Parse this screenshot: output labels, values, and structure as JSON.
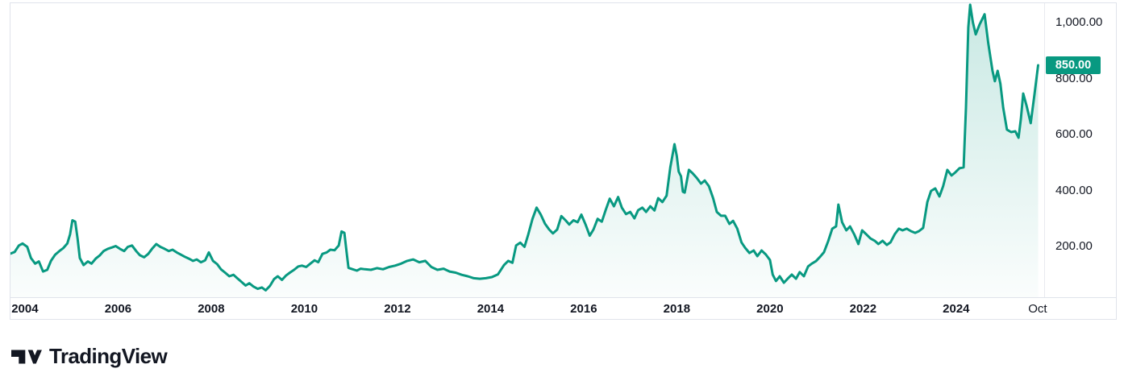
{
  "colors": {
    "accent": "#089981",
    "text": "#131722",
    "border": "#e0e3eb",
    "badge_text": "#ffffff",
    "background": "#ffffff"
  },
  "price_scale": {
    "labels": [
      {
        "label": "1,000.00",
        "value": 1000
      },
      {
        "label": "800.00",
        "value": 800
      },
      {
        "label": "600.00",
        "value": 600
      },
      {
        "label": "400.00",
        "value": 400
      },
      {
        "label": "200.00",
        "value": 200
      }
    ],
    "current": {
      "label": "850.00",
      "value": 850
    }
  },
  "time_scale": {
    "ticks": [
      {
        "label": "2004",
        "year": 2004,
        "bold": true
      },
      {
        "label": "2006",
        "year": 2006,
        "bold": true
      },
      {
        "label": "2008",
        "year": 2008,
        "bold": true
      },
      {
        "label": "2010",
        "year": 2010,
        "bold": true
      },
      {
        "label": "2012",
        "year": 2012,
        "bold": true
      },
      {
        "label": "2014",
        "year": 2014,
        "bold": true
      },
      {
        "label": "2016",
        "year": 2016,
        "bold": true
      },
      {
        "label": "2018",
        "year": 2018,
        "bold": true
      },
      {
        "label": "2020",
        "year": 2020,
        "bold": true
      },
      {
        "label": "2022",
        "year": 2022,
        "bold": true
      },
      {
        "label": "2024",
        "year": 2024,
        "bold": true
      },
      {
        "label": "Oct",
        "year": 2025.75,
        "bold": false
      }
    ]
  },
  "branding": {
    "name": "TradingView"
  },
  "chart_data": {
    "type": "area",
    "title": "",
    "xlabel": "",
    "ylabel": "",
    "legend": false,
    "grid": false,
    "x_axis": {
      "unit": "year",
      "domain": [
        2003.69,
        2025.89
      ],
      "tick_labels": [
        "2004",
        "2006",
        "2008",
        "2010",
        "2012",
        "2014",
        "2016",
        "2018",
        "2020",
        "2022",
        "2024",
        "Oct"
      ]
    },
    "y_axis": {
      "domain": [
        0,
        1070.5
      ],
      "tick_values": [
        200,
        400,
        600,
        800,
        1000
      ],
      "side": "right"
    },
    "last_price": 850,
    "series": [
      {
        "name": "close",
        "color": "#089981",
        "points": [
          [
            2003.69,
            176
          ],
          [
            2003.78,
            182
          ],
          [
            2003.87,
            205
          ],
          [
            2003.95,
            212
          ],
          [
            2004.05,
            200
          ],
          [
            2004.13,
            160
          ],
          [
            2004.22,
            140
          ],
          [
            2004.3,
            148
          ],
          [
            2004.39,
            112
          ],
          [
            2004.48,
            118
          ],
          [
            2004.56,
            150
          ],
          [
            2004.65,
            172
          ],
          [
            2004.74,
            185
          ],
          [
            2004.82,
            195
          ],
          [
            2004.91,
            212
          ],
          [
            2004.97,
            245
          ],
          [
            2005.02,
            295
          ],
          [
            2005.08,
            290
          ],
          [
            2005.13,
            230
          ],
          [
            2005.18,
            160
          ],
          [
            2005.26,
            135
          ],
          [
            2005.35,
            148
          ],
          [
            2005.43,
            140
          ],
          [
            2005.52,
            158
          ],
          [
            2005.61,
            170
          ],
          [
            2005.69,
            185
          ],
          [
            2005.78,
            193
          ],
          [
            2005.87,
            198
          ],
          [
            2005.95,
            203
          ],
          [
            2006.04,
            193
          ],
          [
            2006.13,
            185
          ],
          [
            2006.21,
            200
          ],
          [
            2006.3,
            205
          ],
          [
            2006.39,
            185
          ],
          [
            2006.47,
            170
          ],
          [
            2006.56,
            163
          ],
          [
            2006.65,
            175
          ],
          [
            2006.74,
            195
          ],
          [
            2006.82,
            210
          ],
          [
            2006.91,
            200
          ],
          [
            2007.0,
            193
          ],
          [
            2007.09,
            185
          ],
          [
            2007.17,
            190
          ],
          [
            2007.26,
            180
          ],
          [
            2007.35,
            172
          ],
          [
            2007.43,
            165
          ],
          [
            2007.52,
            158
          ],
          [
            2007.61,
            150
          ],
          [
            2007.69,
            155
          ],
          [
            2007.78,
            145
          ],
          [
            2007.87,
            152
          ],
          [
            2007.95,
            180
          ],
          [
            2008.04,
            150
          ],
          [
            2008.13,
            138
          ],
          [
            2008.21,
            120
          ],
          [
            2008.3,
            108
          ],
          [
            2008.39,
            95
          ],
          [
            2008.48,
            100
          ],
          [
            2008.56,
            88
          ],
          [
            2008.65,
            75
          ],
          [
            2008.74,
            62
          ],
          [
            2008.82,
            70
          ],
          [
            2008.91,
            58
          ],
          [
            2009.0,
            50
          ],
          [
            2009.09,
            55
          ],
          [
            2009.17,
            45
          ],
          [
            2009.26,
            60
          ],
          [
            2009.35,
            85
          ],
          [
            2009.43,
            95
          ],
          [
            2009.52,
            82
          ],
          [
            2009.61,
            98
          ],
          [
            2009.69,
            108
          ],
          [
            2009.78,
            118
          ],
          [
            2009.87,
            130
          ],
          [
            2009.95,
            133
          ],
          [
            2010.04,
            128
          ],
          [
            2010.13,
            140
          ],
          [
            2010.22,
            152
          ],
          [
            2010.3,
            145
          ],
          [
            2010.39,
            175
          ],
          [
            2010.48,
            180
          ],
          [
            2010.56,
            190
          ],
          [
            2010.65,
            188
          ],
          [
            2010.74,
            205
          ],
          [
            2010.8,
            255
          ],
          [
            2010.86,
            250
          ],
          [
            2010.91,
            180
          ],
          [
            2010.95,
            125
          ],
          [
            2011.04,
            120
          ],
          [
            2011.13,
            115
          ],
          [
            2011.21,
            122
          ],
          [
            2011.3,
            120
          ],
          [
            2011.43,
            118
          ],
          [
            2011.56,
            124
          ],
          [
            2011.69,
            120
          ],
          [
            2011.82,
            128
          ],
          [
            2011.95,
            133
          ],
          [
            2012.08,
            140
          ],
          [
            2012.21,
            150
          ],
          [
            2012.34,
            155
          ],
          [
            2012.47,
            145
          ],
          [
            2012.6,
            150
          ],
          [
            2012.73,
            128
          ],
          [
            2012.86,
            118
          ],
          [
            2012.99,
            122
          ],
          [
            2013.12,
            112
          ],
          [
            2013.25,
            108
          ],
          [
            2013.38,
            100
          ],
          [
            2013.51,
            95
          ],
          [
            2013.64,
            88
          ],
          [
            2013.77,
            86
          ],
          [
            2013.9,
            88
          ],
          [
            2014.03,
            92
          ],
          [
            2014.16,
            102
          ],
          [
            2014.29,
            135
          ],
          [
            2014.38,
            150
          ],
          [
            2014.47,
            143
          ],
          [
            2014.55,
            205
          ],
          [
            2014.64,
            215
          ],
          [
            2014.73,
            200
          ],
          [
            2014.81,
            245
          ],
          [
            2014.9,
            300
          ],
          [
            2014.99,
            340
          ],
          [
            2015.08,
            315
          ],
          [
            2015.17,
            283
          ],
          [
            2015.26,
            262
          ],
          [
            2015.34,
            248
          ],
          [
            2015.43,
            262
          ],
          [
            2015.52,
            310
          ],
          [
            2015.61,
            295
          ],
          [
            2015.69,
            280
          ],
          [
            2015.78,
            295
          ],
          [
            2015.87,
            288
          ],
          [
            2015.95,
            315
          ],
          [
            2016.04,
            280
          ],
          [
            2016.13,
            240
          ],
          [
            2016.21,
            262
          ],
          [
            2016.3,
            300
          ],
          [
            2016.39,
            290
          ],
          [
            2016.47,
            330
          ],
          [
            2016.56,
            372
          ],
          [
            2016.65,
            345
          ],
          [
            2016.74,
            378
          ],
          [
            2016.82,
            340
          ],
          [
            2016.91,
            317
          ],
          [
            2017.0,
            325
          ],
          [
            2017.09,
            302
          ],
          [
            2017.17,
            331
          ],
          [
            2017.26,
            340
          ],
          [
            2017.34,
            325
          ],
          [
            2017.43,
            345
          ],
          [
            2017.52,
            330
          ],
          [
            2017.6,
            374
          ],
          [
            2017.69,
            360
          ],
          [
            2017.78,
            383
          ],
          [
            2017.86,
            484
          ],
          [
            2017.95,
            567
          ],
          [
            2018.0,
            524
          ],
          [
            2018.04,
            469
          ],
          [
            2018.09,
            452
          ],
          [
            2018.13,
            397
          ],
          [
            2018.17,
            394
          ],
          [
            2018.26,
            475
          ],
          [
            2018.34,
            463
          ],
          [
            2018.43,
            446
          ],
          [
            2018.52,
            426
          ],
          [
            2018.6,
            437
          ],
          [
            2018.69,
            417
          ],
          [
            2018.78,
            374
          ],
          [
            2018.86,
            325
          ],
          [
            2018.95,
            311
          ],
          [
            2019.04,
            311
          ],
          [
            2019.13,
            282
          ],
          [
            2019.21,
            293
          ],
          [
            2019.3,
            265
          ],
          [
            2019.39,
            216
          ],
          [
            2019.47,
            196
          ],
          [
            2019.56,
            178
          ],
          [
            2019.65,
            187
          ],
          [
            2019.73,
            167
          ],
          [
            2019.82,
            187
          ],
          [
            2019.91,
            173
          ],
          [
            2020.0,
            153
          ],
          [
            2020.06,
            101
          ],
          [
            2020.13,
            78
          ],
          [
            2020.21,
            95
          ],
          [
            2020.3,
            72
          ],
          [
            2020.38,
            86
          ],
          [
            2020.47,
            101
          ],
          [
            2020.56,
            86
          ],
          [
            2020.64,
            110
          ],
          [
            2020.73,
            95
          ],
          [
            2020.82,
            130
          ],
          [
            2020.9,
            140
          ],
          [
            2020.99,
            149
          ],
          [
            2021.08,
            165
          ],
          [
            2021.16,
            181
          ],
          [
            2021.25,
            220
          ],
          [
            2021.34,
            265
          ],
          [
            2021.42,
            273
          ],
          [
            2021.47,
            351
          ],
          [
            2021.55,
            288
          ],
          [
            2021.64,
            259
          ],
          [
            2021.72,
            273
          ],
          [
            2021.81,
            245
          ],
          [
            2021.9,
            210
          ],
          [
            2021.98,
            259
          ],
          [
            2022.07,
            245
          ],
          [
            2022.16,
            230
          ],
          [
            2022.25,
            222
          ],
          [
            2022.33,
            210
          ],
          [
            2022.42,
            222
          ],
          [
            2022.51,
            207
          ],
          [
            2022.59,
            216
          ],
          [
            2022.68,
            245
          ],
          [
            2022.77,
            265
          ],
          [
            2022.85,
            259
          ],
          [
            2022.94,
            265
          ],
          [
            2023.03,
            256
          ],
          [
            2023.12,
            250
          ],
          [
            2023.2,
            256
          ],
          [
            2023.29,
            268
          ],
          [
            2023.38,
            360
          ],
          [
            2023.46,
            400
          ],
          [
            2023.55,
            409
          ],
          [
            2023.64,
            380
          ],
          [
            2023.72,
            417
          ],
          [
            2023.81,
            475
          ],
          [
            2023.9,
            455
          ],
          [
            2023.98,
            466
          ],
          [
            2024.07,
            481
          ],
          [
            2024.16,
            484
          ],
          [
            2024.21,
            697
          ],
          [
            2024.26,
            984
          ],
          [
            2024.3,
            1065
          ],
          [
            2024.36,
            1002
          ],
          [
            2024.42,
            959
          ],
          [
            2024.5,
            993
          ],
          [
            2024.61,
            1031
          ],
          [
            2024.69,
            927
          ],
          [
            2024.78,
            829
          ],
          [
            2024.83,
            792
          ],
          [
            2024.89,
            829
          ],
          [
            2024.95,
            783
          ],
          [
            2025.01,
            697
          ],
          [
            2025.09,
            619
          ],
          [
            2025.18,
            610
          ],
          [
            2025.27,
            613
          ],
          [
            2025.34,
            590
          ],
          [
            2025.39,
            657
          ],
          [
            2025.44,
            748
          ],
          [
            2025.51,
            705
          ],
          [
            2025.6,
            642
          ],
          [
            2025.68,
            743
          ],
          [
            2025.76,
            849
          ]
        ]
      }
    ]
  }
}
